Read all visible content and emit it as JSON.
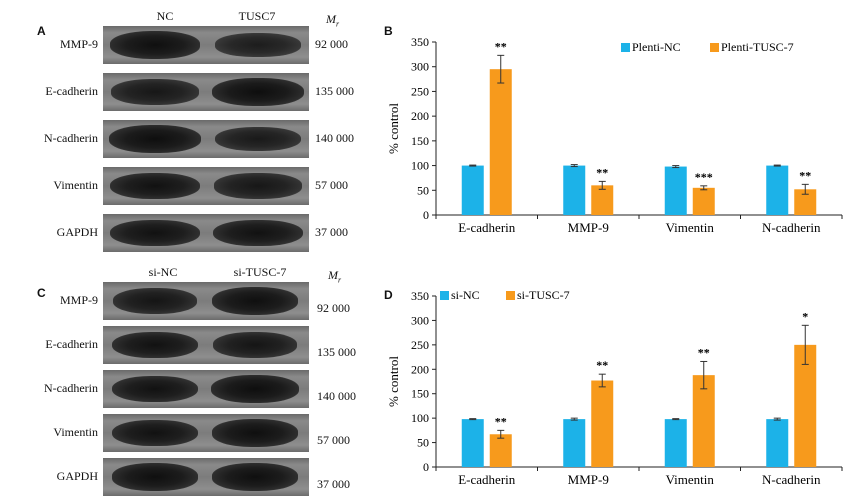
{
  "panels": {
    "A": {
      "letter": "A",
      "headers": [
        "NC",
        "TUSC7"
      ],
      "mr_label": "Mr",
      "rows": [
        {
          "label": "MMP-9",
          "mw": "92 000",
          "bands": [
            0.95,
            0.7
          ]
        },
        {
          "label": "E-cadherin",
          "mw": "135 000",
          "bands": [
            0.8,
            0.98
          ]
        },
        {
          "label": "N-cadherin",
          "mw": "140 000",
          "bands": [
            0.98,
            0.75
          ]
        },
        {
          "label": "Vimentin",
          "mw": "57 000",
          "bands": [
            0.9,
            0.8
          ]
        },
        {
          "label": "GAPDH",
          "mw": "37 000",
          "bands": [
            0.9,
            0.9
          ]
        }
      ]
    },
    "C": {
      "letter": "C",
      "headers": [
        "si-NC",
        "si-TUSC-7"
      ],
      "mr_label": "Mr",
      "rows": [
        {
          "label": "MMP-9",
          "mw": "92 000",
          "bands": [
            0.85,
            0.95
          ]
        },
        {
          "label": "E-cadherin",
          "mw": "135 000",
          "bands": [
            0.9,
            0.85
          ]
        },
        {
          "label": "N-cadherin",
          "mw": "140 000",
          "bands": [
            0.9,
            0.98
          ]
        },
        {
          "label": "Vimentin",
          "mw": "57 000",
          "bands": [
            0.9,
            0.95
          ]
        },
        {
          "label": "GAPDH",
          "mw": "37 000",
          "bands": [
            0.95,
            0.95
          ]
        }
      ]
    }
  },
  "chart_data": [
    {
      "panel": "B",
      "type": "bar",
      "ylabel": "% control",
      "ylim": [
        0,
        350
      ],
      "yticks": [
        0,
        50,
        100,
        150,
        200,
        250,
        300,
        350
      ],
      "categories": [
        "E-cadherin",
        "MMP-9",
        "Vimentin",
        "N-cadherin"
      ],
      "legend_position": "top-right",
      "series": [
        {
          "name": "Plenti-NC",
          "color": "#1cb2e8",
          "values": [
            100,
            100,
            98,
            100
          ],
          "errors": [
            1,
            2,
            2,
            1
          ]
        },
        {
          "name": "Plenti-TUSC-7",
          "color": "#f79a1c",
          "values": [
            295,
            60,
            55,
            52
          ],
          "errors": [
            28,
            8,
            4,
            10
          ]
        }
      ],
      "annotations": [
        "**",
        "**",
        "***",
        "**"
      ]
    },
    {
      "panel": "D",
      "type": "bar",
      "ylabel": "% control",
      "ylim": [
        0,
        350
      ],
      "yticks": [
        0,
        50,
        100,
        150,
        200,
        250,
        300,
        350
      ],
      "categories": [
        "E-cadherin",
        "MMP-9",
        "Vimentin",
        "N-cadherin"
      ],
      "legend_position": "top-left",
      "series": [
        {
          "name": "si-NC",
          "color": "#1cb2e8",
          "values": [
            98,
            98,
            98,
            98
          ],
          "errors": [
            1,
            2,
            1,
            2
          ]
        },
        {
          "name": "si-TUSC-7",
          "color": "#f79a1c",
          "values": [
            67,
            177,
            188,
            250
          ],
          "errors": [
            8,
            13,
            28,
            40
          ]
        }
      ],
      "annotations": [
        "**",
        "**",
        "**",
        "*"
      ]
    }
  ]
}
